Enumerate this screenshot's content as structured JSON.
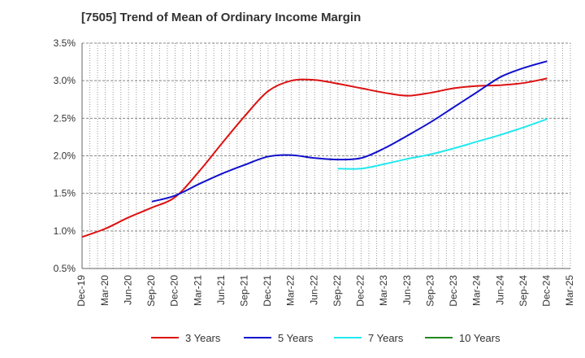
{
  "chart_data": {
    "type": "line",
    "title": "[7505]  Trend of Mean of Ordinary Income Margin",
    "xlabel": "",
    "ylabel": "",
    "x": [
      "Dec-19",
      "Mar-20",
      "Jun-20",
      "Sep-20",
      "Dec-20",
      "Mar-21",
      "Jun-21",
      "Sep-21",
      "Dec-21",
      "Mar-22",
      "Jun-22",
      "Sep-22",
      "Dec-22",
      "Mar-23",
      "Jun-23",
      "Sep-23",
      "Dec-23",
      "Mar-24",
      "Jun-24",
      "Sep-24",
      "Dec-24",
      "Mar-25"
    ],
    "y_ticks": [
      "0.5%",
      "1.0%",
      "1.5%",
      "2.0%",
      "2.5%",
      "3.0%",
      "3.5%"
    ],
    "ylim": [
      0.5,
      3.5
    ],
    "y_unit": "%",
    "grid": true,
    "legend_position": "bottom",
    "series": [
      {
        "name": "3 Years",
        "color": "#dd1111",
        "values": [
          0.92,
          1.03,
          1.18,
          1.31,
          1.45,
          1.78,
          2.16,
          2.53,
          2.86,
          3.0,
          3.01,
          2.96,
          2.9,
          2.84,
          2.8,
          2.84,
          2.9,
          2.93,
          2.94,
          2.97,
          3.03,
          null
        ]
      },
      {
        "name": "5 Years",
        "color": "#1010cc",
        "values": [
          null,
          null,
          null,
          1.39,
          1.47,
          1.62,
          1.76,
          1.88,
          1.99,
          2.01,
          1.97,
          1.95,
          1.97,
          2.1,
          2.27,
          2.45,
          2.65,
          2.85,
          3.05,
          3.17,
          3.26,
          null
        ]
      },
      {
        "name": "7 Years",
        "color": "#22e8ee",
        "values": [
          null,
          null,
          null,
          null,
          null,
          null,
          null,
          null,
          null,
          null,
          null,
          1.83,
          1.83,
          1.89,
          1.96,
          2.02,
          2.1,
          2.19,
          2.28,
          2.38,
          2.49,
          null
        ]
      },
      {
        "name": "10 Years",
        "color": "#228822",
        "values": [
          null,
          null,
          null,
          null,
          null,
          null,
          null,
          null,
          null,
          null,
          null,
          null,
          null,
          null,
          null,
          null,
          null,
          null,
          null,
          null,
          null,
          null
        ]
      }
    ]
  }
}
